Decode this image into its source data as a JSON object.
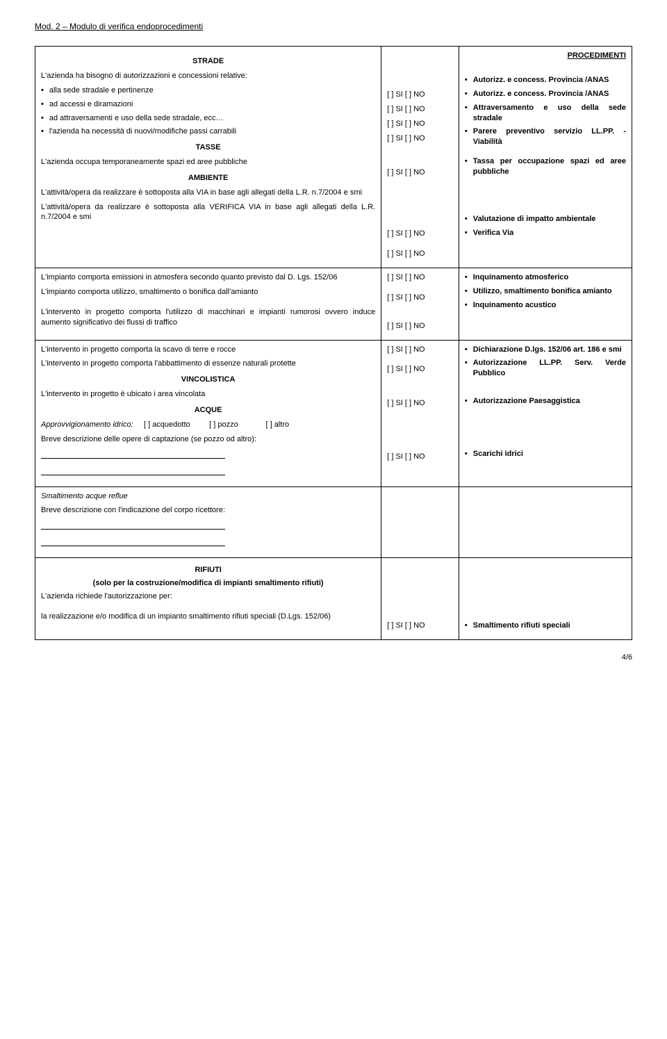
{
  "doc": {
    "header": "Mod. 2 – Modulo di verifica endoprocedimenti",
    "footer_page": "4/6"
  },
  "strade": {
    "title": "STRADE",
    "intro": "L'azienda ha bisogno di autorizzazioni e concessioni relative:",
    "items": [
      "alla sede stradale e pertinenze",
      "ad accessi e diramazioni",
      "ad attraversamenti e uso della sede stradale, ecc…",
      "l'azienda ha necessità di nuovi/modifiche  passi carrabili"
    ],
    "checks": [
      "[ ] SI [ ] NO",
      "[ ] SI [ ] NO",
      "[ ] SI [ ] NO",
      "[ ] SI [ ] NO"
    ],
    "procedimenti_title": "PROCEDIMENTI",
    "procedimenti": [
      "Autorizz. e concess. Provincia /ANAS",
      "Autorizz. e concess. Provincia /ANAS",
      "Attraversamento e uso della sede stradale",
      "Parere preventivo servizio LL.PP. - Viabilità"
    ]
  },
  "tasse": {
    "title": "TASSE",
    "line": "L'azienda occupa temporaneamente spazi ed aree pubbliche",
    "check": "[ ] SI  [ ] NO",
    "proc": "Tassa per occupazione spazi ed aree pubbliche"
  },
  "ambiente": {
    "title": "AMBIENTE",
    "block1": [
      {
        "text": "L'attività/opera da realizzare è sottoposta alla VIA in base agli allegati della L.R. n.7/2004 e smi",
        "check": "[ ] SI [ ] NO",
        "proc": "Valutazione di impatto ambientale"
      },
      {
        "text": "L'attività/opera da realizzare è sottoposta alla VERIFICA VIA in base agli allegati della L.R. n.7/2004 e smi",
        "check": "[ ] SI [ ] NO",
        "proc": "Verifica Via"
      }
    ],
    "block2": [
      {
        "text": "L'impianto comporta emissioni in atmosfera secondo quanto previsto dal D. Lgs. 152/06",
        "check": "[ ] SI [ ] NO",
        "proc": "Inquinamento atmosferico"
      },
      {
        "text": "L'impianto comporta utilizzo, smaltimento o bonifica dall'amianto",
        "check": "[ ] SI [ ] NO",
        "proc": "Utilizzo, smaltimento bonifica amianto"
      },
      {
        "text": "L'intervento in progetto comporta l'utilizzo di macchinari e impianti rumorosi ovvero induce aumento significativo dei flussi di traffico",
        "check": "[ ] SI [ ] NO",
        "proc": "Inquinamento acustico"
      }
    ],
    "block3": [
      {
        "text": "L'intervento in progetto comporta la scavo di terre e rocce",
        "check": "[ ] SI [ ] NO",
        "proc": "Dichiarazione D.lgs. 152/06 art. 186 e smi"
      },
      {
        "text": "L'intervento in progetto comporta l'abbattimento di essenze naturali protette",
        "check": "[ ] SI [ ] NO",
        "proc": "Autorizzazione LL.PP. Serv. Verde Pubblico"
      }
    ]
  },
  "vincolistica": {
    "title": "VINCOLISTICA",
    "line": "L'intervento in progetto è  ubicato i area vincolata",
    "check": "[ ] SI [ ] NO",
    "proc": "Autorizzazione Paesaggistica"
  },
  "acque": {
    "title": "ACQUE",
    "approv_label": "Approvvigionamento idrico:",
    "options": [
      "[ ] acquedotto",
      "[ ] pozzo",
      "[ ] altro"
    ],
    "breve_desc": "Breve descrizione delle opere di captazione (se pozzo od altro):",
    "check": "[ ] SI [ ] NO",
    "proc": "Scarichi idrici",
    "smaltimento_title": "Smaltimento acque reflue",
    "breve_desc2": "Breve descrizione con l'indicazione del corpo ricettore:"
  },
  "rifiuti": {
    "title": "RIFIUTI",
    "subtitle": "(solo per la costruzione/modifica di impianti smaltimento rifiuti)",
    "intro": "L'azienda richiede l'autorizzazione per:",
    "line": "la realizzazione e/o modifica di un impianto smaltimento rifiuti speciali (D.Lgs. 152/06)",
    "check": "[ ] SI [ ] NO",
    "proc": "Smaltimento rifiuti speciali"
  }
}
